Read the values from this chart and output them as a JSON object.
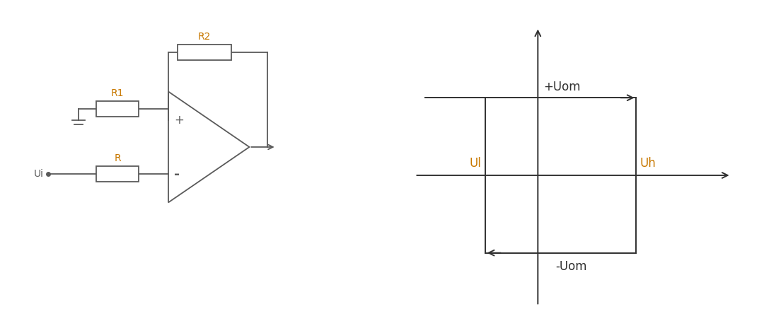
{
  "bg_color": "#ffffff",
  "circuit_color": "#5a5a5a",
  "label_color_orange": "#c87800",
  "label_color_dark": "#303030",
  "r1_label": "R1",
  "r2_label": "R2",
  "r_label": "R",
  "ui_label": "Ui",
  "plus_label": "+",
  "minus_label": "-",
  "uom_pos_label": "+Uom",
  "uom_neg_label": "-Uom",
  "ul_label": "Ul",
  "uh_label": "Uh",
  "figsize": [
    10.8,
    4.71
  ],
  "dpi": 100
}
